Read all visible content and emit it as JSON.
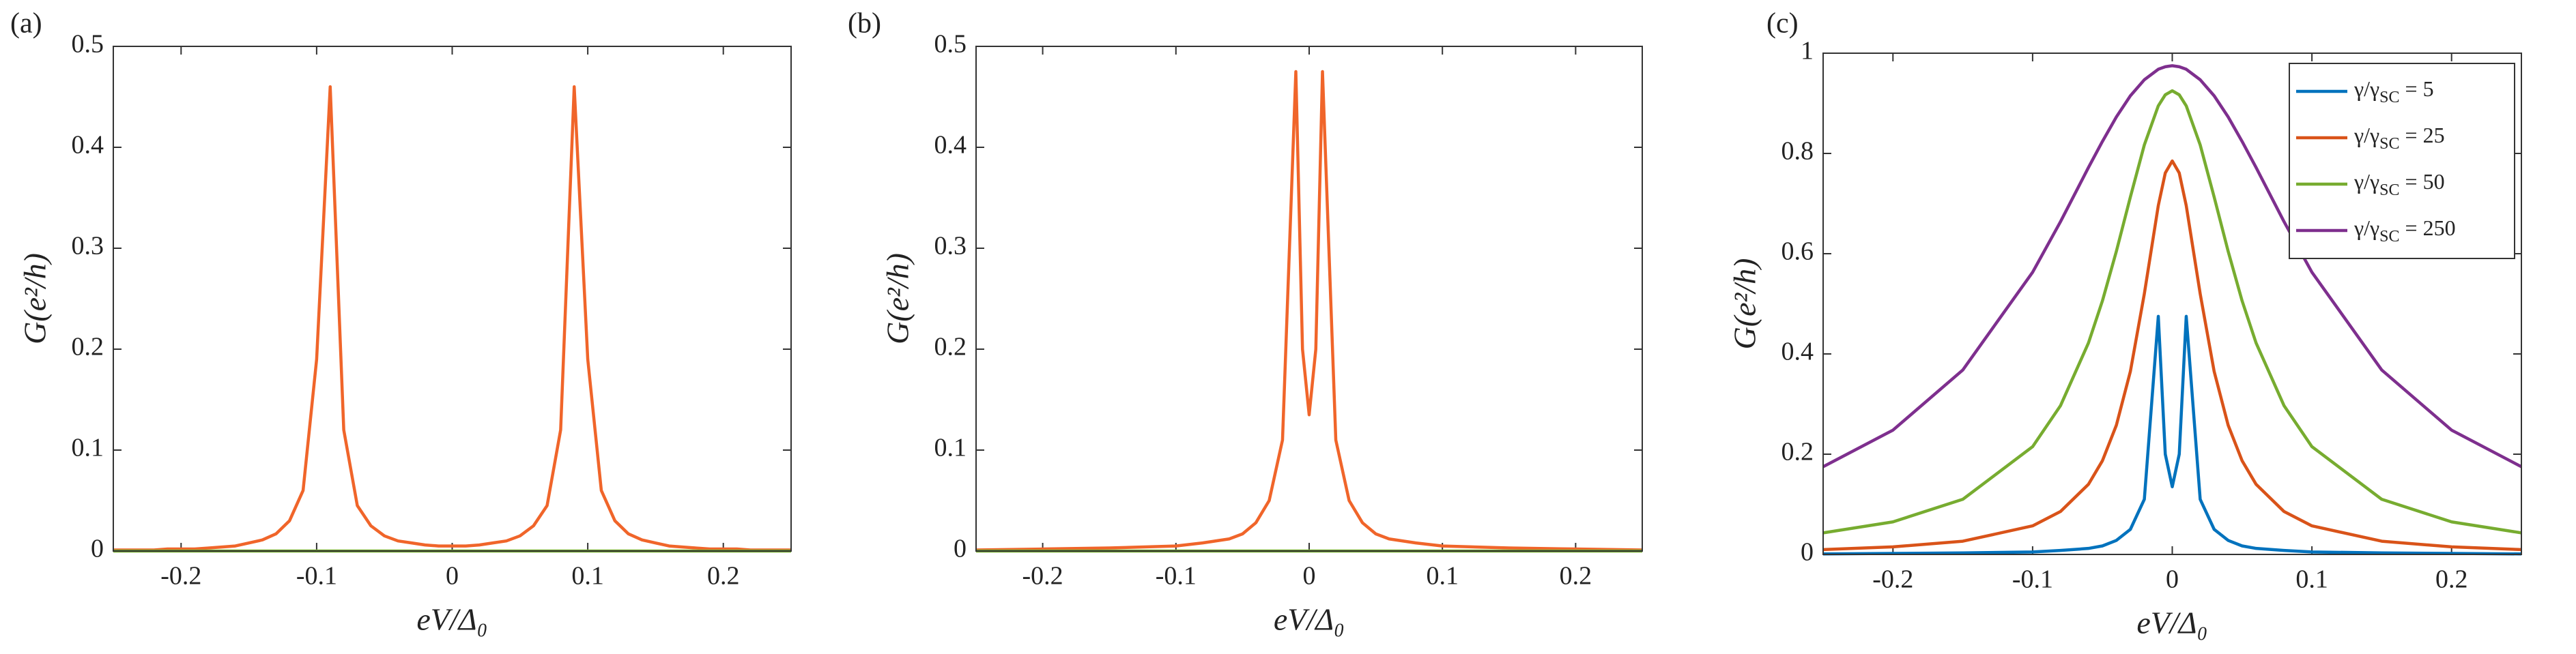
{
  "chart_data": [
    {
      "type": "line",
      "label": "(a)",
      "xlabel": "eV/Δ₀",
      "ylabel": "G(e²/h)",
      "x": [
        -0.25,
        -0.24,
        -0.23,
        -0.22,
        -0.21,
        -0.2,
        -0.19,
        -0.18,
        -0.17,
        -0.16,
        -0.15,
        -0.14,
        -0.13,
        -0.12,
        -0.11,
        -0.1,
        -0.09,
        -0.08,
        -0.07,
        -0.06,
        -0.05,
        -0.04,
        -0.03,
        -0.02,
        -0.01,
        0,
        0.01,
        0.02,
        0.03,
        0.04,
        0.05,
        0.06,
        0.07,
        0.08,
        0.09,
        0.1,
        0.11,
        0.12,
        0.13,
        0.14,
        0.15,
        0.16,
        0.17,
        0.18,
        0.19,
        0.2,
        0.21,
        0.22,
        0.23,
        0.24,
        0.25
      ],
      "series": [
        {
          "color": "#F0652A",
          "values": [
            0.001,
            0.001,
            0.001,
            0.001,
            0.002,
            0.002,
            0.002,
            0.003,
            0.004,
            0.005,
            0.008,
            0.011,
            0.017,
            0.03,
            0.06,
            0.19,
            0.46,
            0.12,
            0.045,
            0.025,
            0.015,
            0.01,
            0.008,
            0.006,
            0.005,
            0.005,
            0.005,
            0.006,
            0.008,
            0.01,
            0.015,
            0.025,
            0.045,
            0.12,
            0.46,
            0.19,
            0.06,
            0.03,
            0.017,
            0.011,
            0.008,
            0.005,
            0.004,
            0.003,
            0.002,
            0.002,
            0.002,
            0.001,
            0.001,
            0.001,
            0.001
          ]
        },
        {
          "color": "#77AC30",
          "x": [
            -0.25,
            0.25
          ],
          "values": [
            0,
            0
          ]
        }
      ],
      "xlim": [
        -0.25,
        0.25
      ],
      "xticks": [
        -0.2,
        -0.1,
        0,
        0.1,
        0.2
      ],
      "ylim": [
        0,
        0.5
      ],
      "yticks": [
        0,
        0.1,
        0.2,
        0.3,
        0.4,
        0.5
      ]
    },
    {
      "type": "line",
      "label": "(b)",
      "xlabel": "eV/Δ₀",
      "ylabel": "G(e²/h)",
      "x": [
        -0.25,
        -0.2,
        -0.15,
        -0.1,
        -0.08,
        -0.06,
        -0.05,
        -0.04,
        -0.03,
        -0.02,
        -0.01,
        -0.005,
        0,
        0.005,
        0.01,
        0.02,
        0.03,
        0.04,
        0.05,
        0.06,
        0.08,
        0.1,
        0.15,
        0.2,
        0.25
      ],
      "series": [
        {
          "color": "#F0652A",
          "values": [
            0.001,
            0.002,
            0.003,
            0.005,
            0.008,
            0.012,
            0.017,
            0.028,
            0.05,
            0.11,
            0.475,
            0.2,
            0.135,
            0.2,
            0.475,
            0.11,
            0.05,
            0.028,
            0.017,
            0.012,
            0.008,
            0.005,
            0.003,
            0.002,
            0.001
          ]
        },
        {
          "color": "#77AC30",
          "x": [
            -0.25,
            0.25
          ],
          "values": [
            0,
            0
          ]
        }
      ],
      "xlim": [
        -0.25,
        0.25
      ],
      "xticks": [
        -0.2,
        -0.1,
        0,
        0.1,
        0.2
      ],
      "ylim": [
        0,
        0.5
      ],
      "yticks": [
        0,
        0.1,
        0.2,
        0.3,
        0.4,
        0.5
      ]
    },
    {
      "type": "line",
      "label": "(c)",
      "xlabel": "eV/Δ₀",
      "ylabel": "G(e²/h)",
      "x": [
        -0.25,
        -0.2,
        -0.15,
        -0.1,
        -0.08,
        -0.06,
        -0.05,
        -0.04,
        -0.03,
        -0.02,
        -0.01,
        -0.005,
        0,
        0.005,
        0.01,
        0.02,
        0.03,
        0.04,
        0.05,
        0.06,
        0.08,
        0.1,
        0.15,
        0.2,
        0.25
      ],
      "series": [
        {
          "name": "γ/γSC = 5",
          "color": "#0072BD",
          "values": [
            0.001,
            0.002,
            0.003,
            0.005,
            0.008,
            0.012,
            0.017,
            0.028,
            0.05,
            0.11,
            0.475,
            0.2,
            0.135,
            0.2,
            0.475,
            0.11,
            0.05,
            0.028,
            0.017,
            0.012,
            0.008,
            0.005,
            0.003,
            0.002,
            0.001
          ]
        },
        {
          "name": "γ/γSC = 25",
          "color": "#D95319",
          "values": [
            0.0097,
            0.0151,
            0.0264,
            0.057,
            0.0857,
            0.14,
            0.187,
            0.258,
            0.365,
            0.52,
            0.696,
            0.761,
            0.785,
            0.761,
            0.696,
            0.52,
            0.365,
            0.258,
            0.187,
            0.14,
            0.0857,
            0.057,
            0.0264,
            0.0151,
            0.0097
          ]
        },
        {
          "name": "γ/γSC = 50",
          "color": "#77AC30",
          "values": [
            0.043,
            0.065,
            0.11,
            0.215,
            0.297,
            0.422,
            0.506,
            0.605,
            0.713,
            0.817,
            0.895,
            0.917,
            0.925,
            0.917,
            0.895,
            0.817,
            0.713,
            0.605,
            0.506,
            0.422,
            0.297,
            0.215,
            0.11,
            0.065,
            0.043
          ]
        },
        {
          "name": "γ/γSC = 250",
          "color": "#7E2F8E",
          "values": [
            0.175,
            0.248,
            0.368,
            0.563,
            0.664,
            0.772,
            0.824,
            0.873,
            0.915,
            0.947,
            0.968,
            0.973,
            0.975,
            0.973,
            0.968,
            0.947,
            0.915,
            0.873,
            0.824,
            0.772,
            0.664,
            0.563,
            0.368,
            0.248,
            0.175
          ]
        }
      ],
      "legend": "upper right",
      "xlim": [
        -0.25,
        0.25
      ],
      "xticks": [
        -0.2,
        -0.1,
        0,
        0.1,
        0.2
      ],
      "ylim": [
        0,
        1
      ],
      "yticks": [
        0,
        0.2,
        0.4,
        0.6,
        0.8,
        1
      ]
    }
  ]
}
